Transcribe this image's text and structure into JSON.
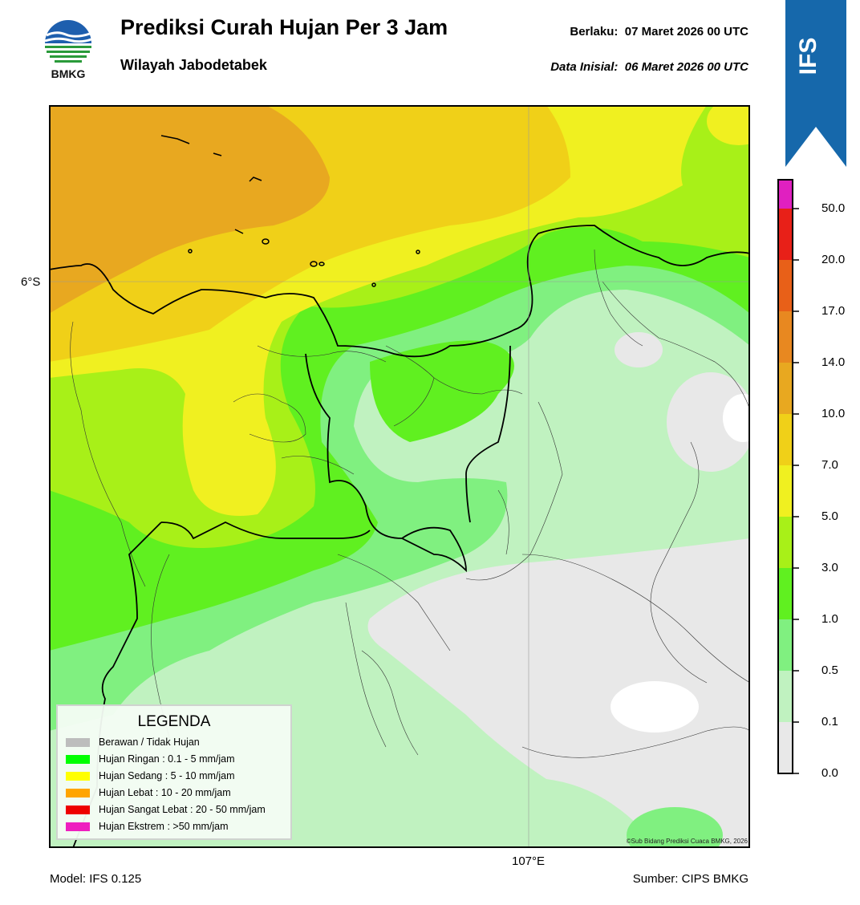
{
  "header": {
    "logo_text": "BMKG",
    "title": "Prediksi Curah Hujan Per 3 Jam",
    "subtitle": "Wilayah Jabodetabek",
    "valid_label": "Berlaku:",
    "valid_value": "07 Maret 2026 00 UTC",
    "init_label": "Data Inisial:",
    "init_value": "06 Maret 2026 00 UTC",
    "model_badge": "IFS"
  },
  "map": {
    "lat_label": "6°S",
    "lon_label": "107°E",
    "copyright": "©Sub Bidang Prediksi Cuaca BMKG, 2026"
  },
  "legend": {
    "title": "LEGENDA",
    "items": [
      {
        "label": "Berawan / Tidak Hujan",
        "color": "#bdbdbd"
      },
      {
        "label": "Hujan Ringan : 0.1 - 5 mm/jam",
        "color": "#00ff00"
      },
      {
        "label": "Hujan Sedang : 5 - 10 mm/jam",
        "color": "#ffff00"
      },
      {
        "label": "Hujan Lebat : 10 - 20 mm/jam",
        "color": "#ffa500"
      },
      {
        "label": "Hujan Sangat Lebat : 20 - 50 mm/jam",
        "color": "#ee0000"
      },
      {
        "label": "Hujan Ekstrem : >50 mm/jam",
        "color": "#ee1fbf"
      }
    ]
  },
  "colorbar": {
    "ticks": [
      "0.0",
      "0.1",
      "0.5",
      "1.0",
      "3.0",
      "5.0",
      "7.0",
      "10.0",
      "14.0",
      "17.0",
      "20.0",
      "50.0"
    ],
    "colors": [
      "#e8e8e8",
      "#c0f2c0",
      "#80f080",
      "#60f020",
      "#a8f018",
      "#f0f020",
      "#f0d018",
      "#e8a820",
      "#e88820",
      "#e86018",
      "#e82018",
      "#e020c0"
    ]
  },
  "footer": {
    "model": "Model: IFS 0.125",
    "source": "Sumber: CIPS BMKG"
  }
}
